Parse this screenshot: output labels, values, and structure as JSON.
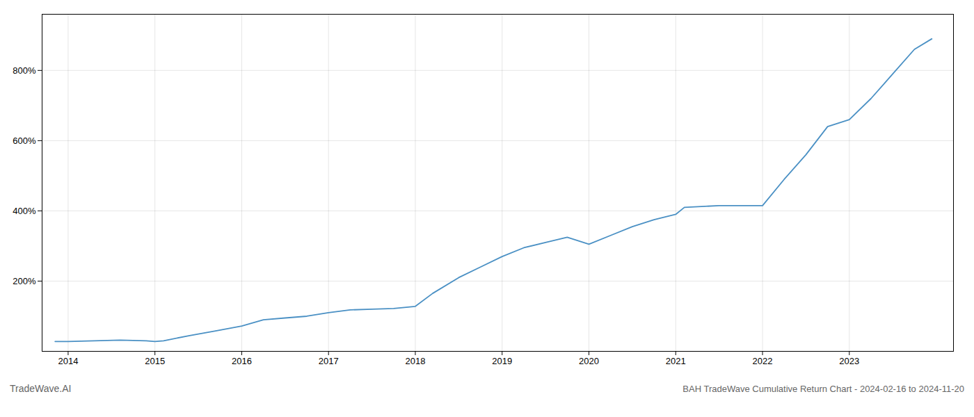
{
  "chart_data": {
    "type": "line",
    "title": "BAH TradeWave Cumulative Return Chart - 2024-02-16 to 2024-11-20",
    "annotations": [
      "TradeWave.AI"
    ],
    "x": [
      2013.85,
      2014.0,
      2014.3,
      2014.6,
      2014.9,
      2015.0,
      2015.1,
      2015.4,
      2015.7,
      2016.0,
      2016.25,
      2016.5,
      2016.75,
      2017.0,
      2017.25,
      2017.5,
      2017.75,
      2018.0,
      2018.2,
      2018.5,
      2018.75,
      2019.0,
      2019.25,
      2019.5,
      2019.75,
      2020.0,
      2020.25,
      2020.5,
      2020.75,
      2021.0,
      2021.1,
      2021.5,
      2021.75,
      2022.0,
      2022.25,
      2022.5,
      2022.75,
      2023.0,
      2023.25,
      2023.5,
      2023.75,
      2023.95
    ],
    "values": [
      28,
      28,
      30,
      32,
      30,
      28,
      30,
      45,
      58,
      72,
      90,
      95,
      100,
      110,
      118,
      120,
      122,
      128,
      165,
      210,
      240,
      270,
      295,
      310,
      325,
      305,
      330,
      355,
      375,
      390,
      410,
      415,
      415,
      415,
      490,
      560,
      640,
      660,
      720,
      790,
      860,
      890
    ],
    "color": "#4a90c4",
    "xlim": [
      2013.7,
      2024.2
    ],
    "ylim": [
      0,
      960
    ],
    "xticks": [
      2014,
      2015,
      2016,
      2017,
      2018,
      2019,
      2020,
      2021,
      2022,
      2023
    ],
    "yticks": [
      {
        "value": 200,
        "label": "200%"
      },
      {
        "value": 400,
        "label": "400%"
      },
      {
        "value": 600,
        "label": "600%"
      },
      {
        "value": 800,
        "label": "800%"
      }
    ],
    "grid": true
  }
}
